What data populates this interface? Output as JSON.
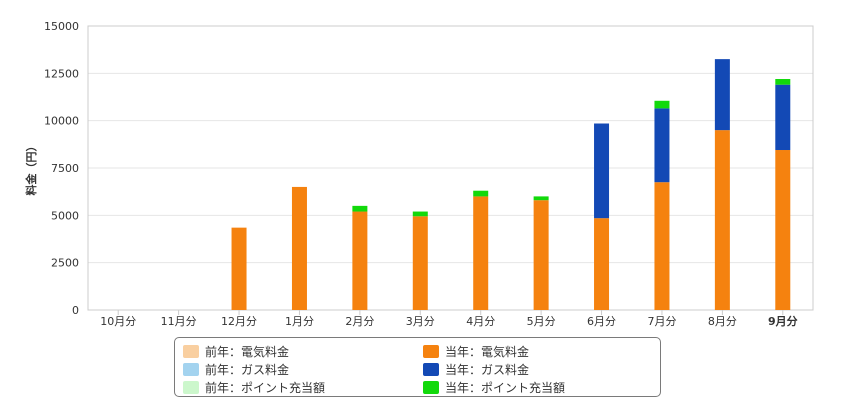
{
  "chart_data": {
    "type": "bar",
    "stacked": true,
    "ylabel": "料金（円）",
    "ylim": [
      0,
      15000
    ],
    "yticks": [
      0,
      2500,
      5000,
      7500,
      10000,
      12500,
      15000
    ],
    "grid": true,
    "categories": [
      "10月分",
      "11月分",
      "12月分",
      "1月分",
      "2月分",
      "3月分",
      "4月分",
      "5月分",
      "6月分",
      "7月分",
      "8月分",
      "9月分"
    ],
    "highlight_category": "9月分",
    "series": [
      {
        "name": "前年：電気料金",
        "color": "#f9cfa0",
        "values": [
          0,
          0,
          0,
          0,
          0,
          0,
          0,
          0,
          0,
          0,
          0,
          0
        ]
      },
      {
        "name": "前年：ガス料金",
        "color": "#a3d3ef",
        "values": [
          0,
          0,
          0,
          0,
          0,
          0,
          0,
          0,
          0,
          0,
          0,
          0
        ]
      },
      {
        "name": "前年：ポイント充当額",
        "color": "#ccf7cc",
        "values": [
          0,
          0,
          0,
          0,
          0,
          0,
          0,
          0,
          0,
          0,
          0,
          0
        ]
      },
      {
        "name": "当年：電気料金",
        "color": "#f5820f",
        "values": [
          0,
          0,
          4350,
          6500,
          5200,
          4950,
          6000,
          5800,
          4850,
          6750,
          9500,
          8450
        ]
      },
      {
        "name": "当年：ガス料金",
        "color": "#1349b5",
        "values": [
          0,
          0,
          0,
          0,
          0,
          0,
          0,
          0,
          5000,
          3900,
          3750,
          3450
        ]
      },
      {
        "name": "当年：ポイント充当額",
        "color": "#12d90b",
        "values": [
          0,
          0,
          0,
          0,
          300,
          250,
          300,
          200,
          0,
          400,
          0,
          300
        ]
      }
    ],
    "legend_position": "bottom"
  },
  "legend": {
    "items": [
      {
        "label": "前年：電気料金",
        "color": "#f9cfa0"
      },
      {
        "label": "当年：電気料金",
        "color": "#f5820f"
      },
      {
        "label": "前年：ガス料金",
        "color": "#a3d3ef"
      },
      {
        "label": "当年：ガス料金",
        "color": "#1349b5"
      },
      {
        "label": "前年：ポイント充当額",
        "color": "#ccf7cc"
      },
      {
        "label": "当年：ポイント充当額",
        "color": "#12d90b"
      }
    ]
  }
}
